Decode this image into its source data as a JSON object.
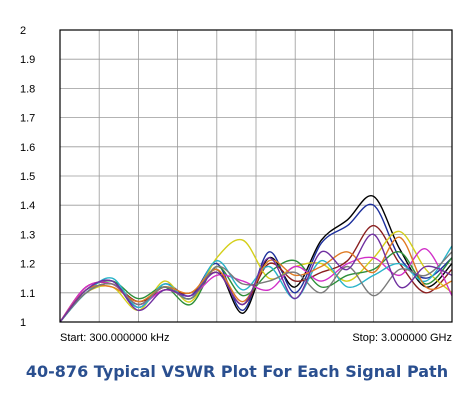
{
  "caption": "40-876 Typical VSWR Plot For Each Signal Path",
  "chart_data": {
    "type": "line",
    "title": "",
    "xlabel": "",
    "ylabel": "",
    "start_label": "Start: 300.000000 kHz",
    "stop_label": "Stop: 3.000000 GHz",
    "xlim": [
      0.0003,
      3.0
    ],
    "ylim": [
      1,
      2
    ],
    "yticks": [
      "1",
      "1.1",
      "1.2",
      "1.3",
      "1.4",
      "1.5",
      "1.6",
      "1.7",
      "1.8",
      "1.9",
      "2"
    ],
    "grid": true,
    "x_divisions": 10,
    "legend": "none",
    "series": [
      {
        "color": "#000000",
        "x": [
          0.0003,
          0.2,
          0.4,
          0.6,
          0.8,
          1.0,
          1.2,
          1.4,
          1.6,
          1.8,
          2.0,
          2.2,
          2.4,
          2.6,
          2.8,
          3.0
        ],
        "y": [
          1.0,
          1.1,
          1.13,
          1.06,
          1.12,
          1.08,
          1.18,
          1.03,
          1.22,
          1.12,
          1.28,
          1.35,
          1.43,
          1.25,
          1.12,
          1.2
        ]
      },
      {
        "color": "#1c2f9c",
        "x": [
          0.0003,
          0.2,
          0.4,
          0.6,
          0.8,
          1.0,
          1.2,
          1.4,
          1.6,
          1.8,
          2.0,
          2.2,
          2.4,
          2.6,
          2.8,
          3.0
        ],
        "y": [
          1.0,
          1.11,
          1.14,
          1.05,
          1.13,
          1.09,
          1.2,
          1.04,
          1.24,
          1.1,
          1.27,
          1.33,
          1.4,
          1.22,
          1.15,
          1.22
        ]
      },
      {
        "color": "#8a1f1f",
        "x": [
          0.0003,
          0.2,
          0.4,
          0.6,
          0.8,
          1.0,
          1.2,
          1.4,
          1.6,
          1.8,
          2.0,
          2.2,
          2.4,
          2.6,
          2.8,
          3.0
        ],
        "y": [
          1.0,
          1.12,
          1.13,
          1.07,
          1.11,
          1.1,
          1.17,
          1.06,
          1.2,
          1.14,
          1.17,
          1.21,
          1.33,
          1.2,
          1.1,
          1.18
        ]
      },
      {
        "color": "#d4cf1a",
        "x": [
          0.0003,
          0.2,
          0.4,
          0.6,
          0.8,
          1.0,
          1.2,
          1.4,
          1.6,
          1.8,
          2.0,
          2.2,
          2.4,
          2.6,
          2.8,
          3.0
        ],
        "y": [
          1.0,
          1.1,
          1.12,
          1.04,
          1.14,
          1.07,
          1.22,
          1.28,
          1.15,
          1.19,
          1.2,
          1.14,
          1.22,
          1.31,
          1.18,
          1.1
        ]
      },
      {
        "color": "#2e8f3a",
        "x": [
          0.0003,
          0.2,
          0.4,
          0.6,
          0.8,
          1.0,
          1.2,
          1.4,
          1.6,
          1.8,
          2.0,
          2.2,
          2.4,
          2.6,
          2.8,
          3.0
        ],
        "y": [
          1.0,
          1.11,
          1.14,
          1.08,
          1.12,
          1.06,
          1.19,
          1.09,
          1.17,
          1.21,
          1.12,
          1.16,
          1.18,
          1.24,
          1.13,
          1.22
        ]
      },
      {
        "color": "#d12fc8",
        "x": [
          0.0003,
          0.2,
          0.4,
          0.6,
          0.8,
          1.0,
          1.2,
          1.4,
          1.6,
          1.8,
          2.0,
          2.2,
          2.4,
          2.6,
          2.8,
          3.0
        ],
        "y": [
          1.0,
          1.12,
          1.13,
          1.06,
          1.11,
          1.09,
          1.16,
          1.14,
          1.11,
          1.19,
          1.14,
          1.2,
          1.22,
          1.16,
          1.25,
          1.09
        ]
      },
      {
        "color": "#28b3c9",
        "x": [
          0.0003,
          0.2,
          0.4,
          0.6,
          0.8,
          1.0,
          1.2,
          1.4,
          1.6,
          1.8,
          2.0,
          2.2,
          2.4,
          2.6,
          2.8,
          3.0
        ],
        "y": [
          1.0,
          1.1,
          1.15,
          1.05,
          1.13,
          1.08,
          1.21,
          1.11,
          1.19,
          1.08,
          1.21,
          1.12,
          1.16,
          1.2,
          1.14,
          1.26
        ]
      },
      {
        "color": "#e07a22",
        "x": [
          0.0003,
          0.2,
          0.4,
          0.6,
          0.8,
          1.0,
          1.2,
          1.4,
          1.6,
          1.8,
          2.0,
          2.2,
          2.4,
          2.6,
          2.8,
          3.0
        ],
        "y": [
          1.0,
          1.11,
          1.12,
          1.07,
          1.12,
          1.1,
          1.18,
          1.07,
          1.21,
          1.16,
          1.19,
          1.24,
          1.17,
          1.29,
          1.12,
          1.14
        ]
      },
      {
        "color": "#7a7a7a",
        "x": [
          0.0003,
          0.2,
          0.4,
          0.6,
          0.8,
          1.0,
          1.2,
          1.4,
          1.6,
          1.8,
          2.0,
          2.2,
          2.4,
          2.6,
          2.8,
          3.0
        ],
        "y": [
          1.0,
          1.1,
          1.13,
          1.06,
          1.12,
          1.08,
          1.19,
          1.13,
          1.14,
          1.17,
          1.1,
          1.19,
          1.09,
          1.18,
          1.16,
          1.24
        ]
      },
      {
        "color": "#6f2fa0",
        "x": [
          0.0003,
          0.2,
          0.4,
          0.6,
          0.8,
          1.0,
          1.2,
          1.4,
          1.6,
          1.8,
          2.0,
          2.2,
          2.4,
          2.6,
          2.8,
          3.0
        ],
        "y": [
          1.0,
          1.11,
          1.14,
          1.04,
          1.11,
          1.09,
          1.17,
          1.06,
          1.22,
          1.08,
          1.24,
          1.18,
          1.3,
          1.12,
          1.19,
          1.16
        ]
      }
    ]
  }
}
